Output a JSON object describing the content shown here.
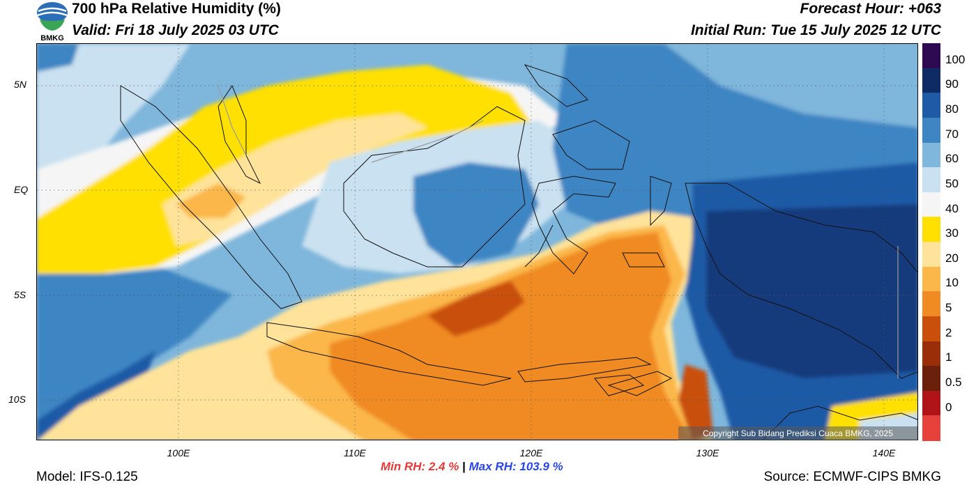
{
  "header": {
    "title": "700 hPa Relative Humidity (%)",
    "valid": "Valid: Fri 18 July 2025 03 UTC",
    "forecast_hour": "Forecast Hour: +063",
    "initial_run": "Initial Run: Tue 15 July 2025 12 UTC",
    "logo_text": "BMKG"
  },
  "map": {
    "lat_labels": [
      "5N",
      "EQ",
      "5S",
      "10S"
    ],
    "lon_labels": [
      "100E",
      "110E",
      "120E",
      "130E",
      "140E"
    ],
    "copyright": "Copyright Sub Bidang Prediksi Cuaca BMKG, 2025"
  },
  "colorbar": {
    "labels": [
      "100",
      "90",
      "80",
      "70",
      "60",
      "50",
      "40",
      "30",
      "20",
      "10",
      "5",
      "2",
      "1",
      "0.5",
      "0"
    ],
    "colors": [
      "#2d0a52",
      "#0e2b66",
      "#1f5aa6",
      "#3d85c3",
      "#7fb6db",
      "#c9e1f0",
      "#f5f5f5",
      "#ffe000",
      "#ffe39a",
      "#fbb74a",
      "#f08a22",
      "#c94f0a",
      "#9a2e08",
      "#6b200b",
      "#b01419",
      "#e8403a"
    ]
  },
  "footer": {
    "min_rh": "Min RH:   2.4 %",
    "separator": "|",
    "max_rh": "Max RH: 103.9 %",
    "model": "Model: IFS-0.125",
    "source": "Source: ECMWF-CIPS BMKG"
  }
}
